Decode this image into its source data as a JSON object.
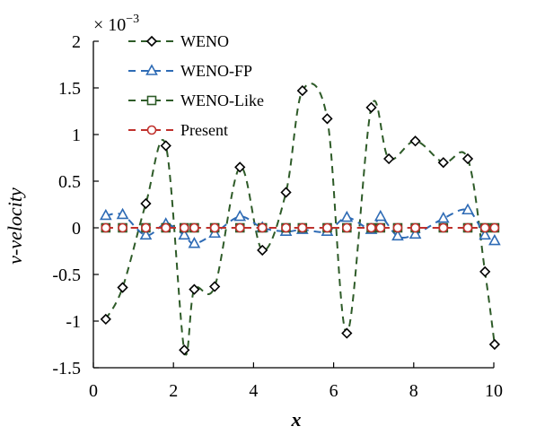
{
  "chart_data": {
    "type": "line",
    "title": "",
    "xlabel": "x",
    "ylabel": "v-velocity",
    "y_multiplier": "× 10",
    "y_multiplier_exp": "−3",
    "xlim": [
      0,
      10
    ],
    "ylim": [
      -1.5,
      2
    ],
    "x_ticks": [
      "0",
      "2",
      "4",
      "6",
      "8",
      "10"
    ],
    "y_ticks": [
      "-1.5",
      "-1",
      "-0.5",
      "0",
      "0.5",
      "1",
      "1.5",
      "2"
    ],
    "legend_position": "top-left",
    "series": [
      {
        "name": "WENO",
        "color": "#2e5b28",
        "marker": "diamond",
        "dash": "dashed",
        "x": [
          0.31,
          0.73,
          1.31,
          1.81,
          2.27,
          2.52,
          3.03,
          3.66,
          4.22,
          4.81,
          5.22,
          5.84,
          6.33,
          6.94,
          7.38,
          8.04,
          8.74,
          9.35,
          9.78,
          10.02
        ],
        "y": [
          -0.98,
          -0.64,
          0.26,
          0.88,
          -1.31,
          -0.66,
          -0.63,
          0.65,
          -0.24,
          0.38,
          1.47,
          1.17,
          -1.13,
          1.29,
          0.74,
          0.93,
          0.7,
          0.74,
          -0.47,
          -1.25
        ]
      },
      {
        "name": "WENO-FP",
        "color": "#2e6bb5",
        "marker": "triangle",
        "dash": "dashed",
        "x": [
          0.31,
          0.73,
          1.31,
          1.81,
          2.27,
          2.52,
          3.03,
          3.66,
          4.22,
          4.81,
          5.22,
          5.84,
          6.33,
          6.94,
          7.17,
          7.6,
          8.04,
          8.74,
          9.35,
          9.78,
          10.02
        ],
        "y": [
          0.13,
          0.14,
          -0.08,
          0.04,
          -0.08,
          -0.17,
          -0.06,
          0.12,
          0.0,
          -0.04,
          -0.02,
          -0.04,
          0.11,
          -0.02,
          0.12,
          -0.09,
          -0.07,
          0.1,
          0.19,
          -0.08,
          -0.14
        ]
      },
      {
        "name": "WENO-Like",
        "color": "#2e5b28",
        "marker": "square",
        "dash": "dashed",
        "x": [
          0.31,
          0.73,
          1.31,
          1.81,
          2.27,
          2.52,
          3.03,
          3.66,
          4.22,
          4.81,
          5.22,
          5.84,
          6.33,
          6.94,
          7.17,
          7.6,
          8.04,
          8.74,
          9.35,
          9.78,
          10.02
        ],
        "y": [
          0,
          0,
          0,
          0,
          0,
          0,
          0,
          0,
          0,
          0,
          0,
          0,
          0,
          0,
          0,
          0,
          0,
          0,
          0,
          0,
          0
        ]
      },
      {
        "name": "Present",
        "color": "#c0302c",
        "marker": "circle",
        "dash": "dashed",
        "x": [
          0.31,
          0.73,
          1.31,
          1.81,
          2.27,
          2.52,
          3.03,
          3.66,
          4.22,
          4.81,
          5.22,
          5.84,
          6.33,
          6.94,
          7.17,
          7.6,
          8.04,
          8.74,
          9.35,
          9.78,
          10.02
        ],
        "y": [
          0,
          0,
          0,
          0,
          0,
          0,
          0,
          0,
          0,
          0,
          0,
          0,
          0,
          0,
          0,
          0,
          0,
          0,
          0,
          0,
          0
        ]
      }
    ]
  }
}
